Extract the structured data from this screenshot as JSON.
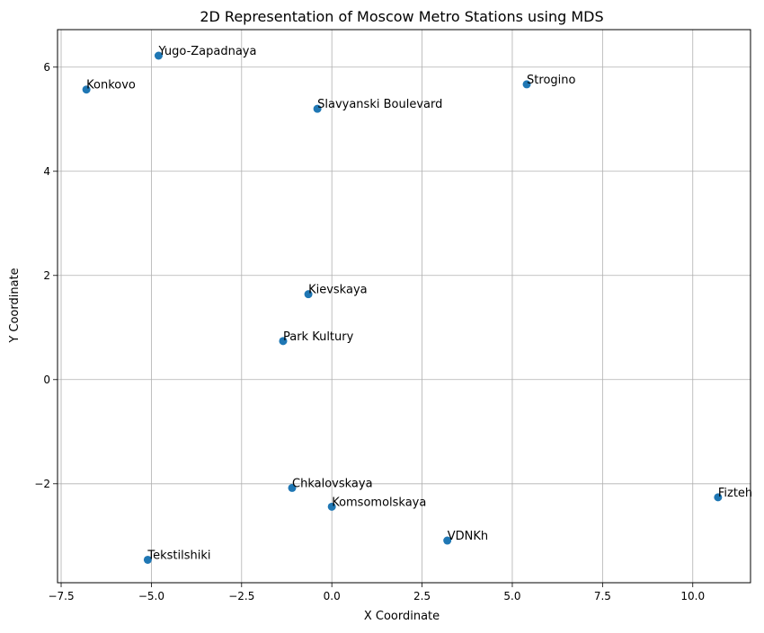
{
  "chart_data": {
    "type": "scatter",
    "title": "2D Representation of Moscow Metro Stations using MDS",
    "xlabel": "X Coordinate",
    "ylabel": "Y Coordinate",
    "xlim": [
      -7.6,
      11.6
    ],
    "ylim": [
      -3.9,
      6.72
    ],
    "grid": true,
    "marker_color": "#1f77b4",
    "xticks": [
      -7.5,
      -5.0,
      -2.5,
      0.0,
      2.5,
      5.0,
      7.5,
      10.0
    ],
    "xtick_labels": [
      "−7.5",
      "−5.0",
      "−2.5",
      "0.0",
      "2.5",
      "5.0",
      "7.5",
      "10.0"
    ],
    "yticks": [
      -2,
      0,
      2,
      4,
      6
    ],
    "ytick_labels": [
      "−2",
      "0",
      "2",
      "4",
      "6"
    ],
    "points": [
      {
        "label": "Yugo-Zapadnaya",
        "x": -4.8,
        "y": 6.22
      },
      {
        "label": "Konkovo",
        "x": -6.8,
        "y": 5.57
      },
      {
        "label": "Slavyanski Boulevard",
        "x": -0.4,
        "y": 5.2
      },
      {
        "label": "Strogino",
        "x": 5.4,
        "y": 5.67
      },
      {
        "label": "Kievskaya",
        "x": -0.65,
        "y": 1.64
      },
      {
        "label": "Park Kultury",
        "x": -1.35,
        "y": 0.74
      },
      {
        "label": "Chkalovskaya",
        "x": -1.1,
        "y": -2.08
      },
      {
        "label": "Komsomolskaya",
        "x": 0.0,
        "y": -2.44
      },
      {
        "label": "Fizteh",
        "x": 10.7,
        "y": -2.26
      },
      {
        "label": "VDNKh",
        "x": 3.2,
        "y": -3.09
      },
      {
        "label": "Tekstilshiki",
        "x": -5.1,
        "y": -3.46
      }
    ]
  }
}
